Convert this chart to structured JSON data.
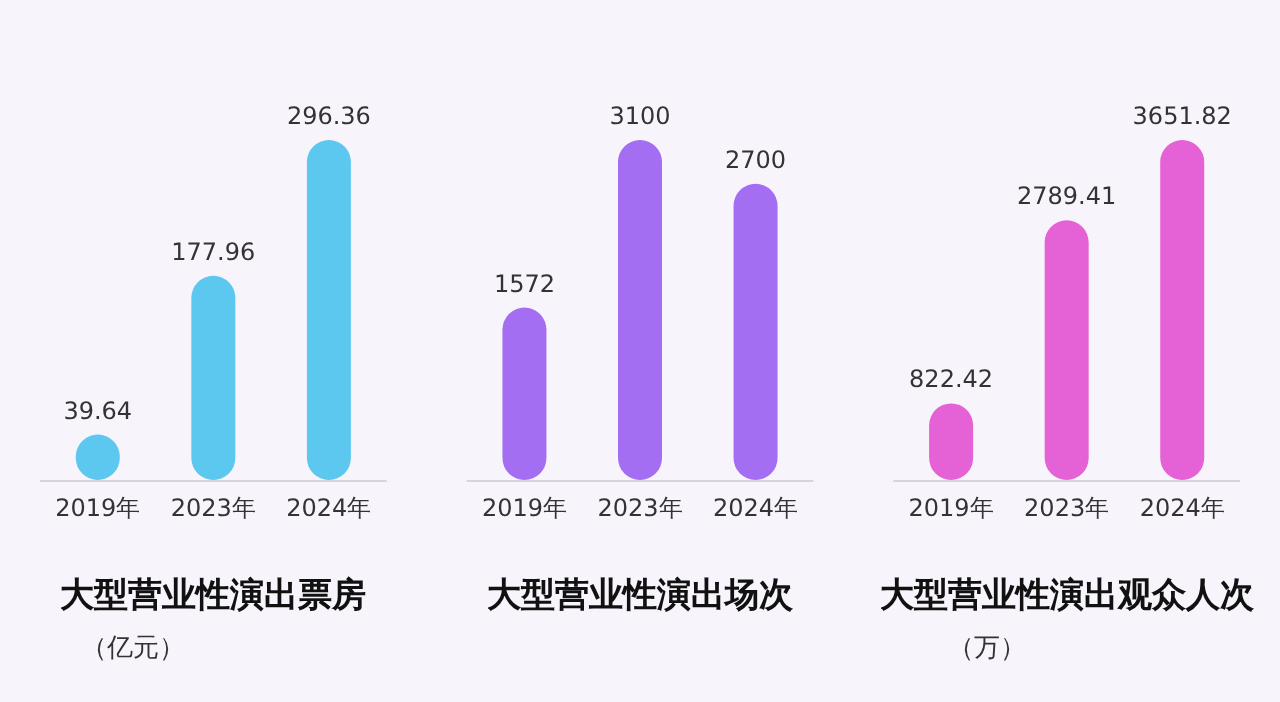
{
  "chart_data": [
    {
      "type": "bar",
      "title": "大型营业性演出票房",
      "subtitle": "（亿元）",
      "categories": [
        "2019年",
        "2023年",
        "2024年"
      ],
      "values": [
        39.64,
        177.96,
        296.36
      ],
      "color": "#5cc8f0",
      "data_labels": true
    },
    {
      "type": "bar",
      "title": "大型营业性演出场次",
      "categories": [
        "2019年",
        "2023年",
        "2024年"
      ],
      "values": [
        1572,
        3100,
        2700
      ],
      "color": "#a46ef2",
      "data_labels": true
    },
    {
      "type": "bar",
      "title": "大型营业性演出观众人次",
      "subtitle": "（万）",
      "categories": [
        "2019年",
        "2023年",
        "2024年"
      ],
      "values": [
        822.42,
        2789.41,
        3651.82
      ],
      "color": "#e462d6",
      "data_labels": true
    }
  ]
}
